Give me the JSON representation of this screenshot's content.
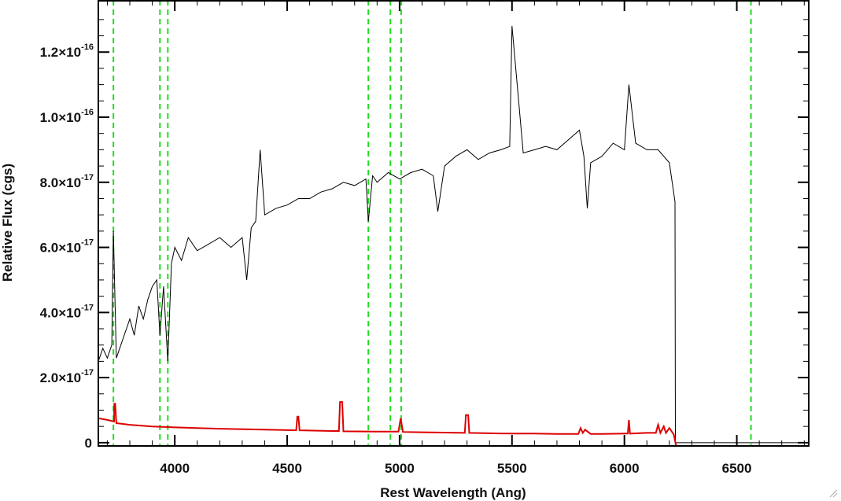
{
  "chart_data": {
    "type": "line",
    "title": "",
    "xlabel": "Rest Wavelength (Ang)",
    "ylabel": "Relative Flux (cgs)",
    "xlim": [
      3660,
      6820
    ],
    "ylim": [
      -1e-18,
      1.36e-16
    ],
    "x_ticks": [
      {
        "value": 4000,
        "label": "4000"
      },
      {
        "value": 4500,
        "label": "4500"
      },
      {
        "value": 5000,
        "label": "5000"
      },
      {
        "value": 5500,
        "label": "5500"
      },
      {
        "value": 6000,
        "label": "6000"
      },
      {
        "value": 6500,
        "label": "6500"
      }
    ],
    "y_ticks": [
      {
        "value": 0,
        "mantissa": "0",
        "exponent": ""
      },
      {
        "value": 2e-17,
        "mantissa": "2.0×10",
        "exponent": "-17"
      },
      {
        "value": 4e-17,
        "mantissa": "4.0×10",
        "exponent": "-17"
      },
      {
        "value": 6e-17,
        "mantissa": "6.0×10",
        "exponent": "-17"
      },
      {
        "value": 8e-17,
        "mantissa": "8.0×10",
        "exponent": "-17"
      },
      {
        "value": 1e-16,
        "mantissa": "1.0×10",
        "exponent": "-16"
      },
      {
        "value": 1.2e-16,
        "mantissa": "1.2×10",
        "exponent": "-16"
      }
    ],
    "vlines": {
      "color": "#22dd22",
      "style": "dashed",
      "x": [
        3727,
        3934,
        3969,
        4861,
        4959,
        5007,
        6563
      ]
    },
    "series": [
      {
        "color": "#000000",
        "x": [
          3660,
          3680,
          3700,
          3720,
          3727,
          3740,
          3760,
          3780,
          3800,
          3820,
          3840,
          3860,
          3880,
          3900,
          3920,
          3934,
          3950,
          3969,
          3985,
          4000,
          4030,
          4060,
          4100,
          4150,
          4200,
          4250,
          4300,
          4320,
          4340,
          4360,
          4380,
          4400,
          4450,
          4500,
          4550,
          4600,
          4650,
          4700,
          4750,
          4800,
          4850,
          4861,
          4880,
          4900,
          4950,
          5000,
          5050,
          5100,
          5150,
          5170,
          5200,
          5250,
          5300,
          5350,
          5400,
          5450,
          5490,
          5500,
          5550,
          5600,
          5650,
          5700,
          5750,
          5800,
          5820,
          5835,
          5850,
          5900,
          5950,
          6000,
          6020,
          6050,
          6100,
          6150,
          6200,
          6225,
          6227,
          6240,
          6820
        ],
        "values": [
          2.5e-17,
          2.9e-17,
          2.6e-17,
          3e-17,
          6.5e-17,
          2.6e-17,
          3e-17,
          3.4e-17,
          3.8e-17,
          3.3e-17,
          4.2e-17,
          3.8e-17,
          4.4e-17,
          4.8e-17,
          5e-17,
          3.3e-17,
          4.8e-17,
          2.5e-17,
          5.5e-17,
          6e-17,
          5.6e-17,
          6.3e-17,
          5.9e-17,
          6.1e-17,
          6.3e-17,
          6e-17,
          6.3e-17,
          5e-17,
          6.6e-17,
          6.8e-17,
          9e-17,
          7e-17,
          7.2e-17,
          7.3e-17,
          7.5e-17,
          7.5e-17,
          7.7e-17,
          7.8e-17,
          8e-17,
          7.9e-17,
          8.1e-17,
          6.8e-17,
          8.2e-17,
          8e-17,
          8.3e-17,
          8.1e-17,
          8.3e-17,
          8.4e-17,
          8.2e-17,
          7.1e-17,
          8.5e-17,
          8.8e-17,
          9e-17,
          8.7e-17,
          8.9e-17,
          9e-17,
          9.1e-17,
          1.28e-16,
          8.9e-17,
          9e-17,
          9.1e-17,
          9e-17,
          9.3e-17,
          9.6e-17,
          8.8e-17,
          7.2e-17,
          8.6e-17,
          8.8e-17,
          9.2e-17,
          9e-17,
          1.1e-16,
          9.2e-17,
          9e-17,
          9e-17,
          8.6e-17,
          7.4e-17,
          0.0,
          0.0,
          0.0
        ]
      },
      {
        "color": "#dd0000",
        "x": [
          3660,
          3700,
          3730,
          3731,
          3735,
          3740,
          3800,
          3900,
          4000,
          4200,
          4400,
          4540,
          4545,
          4550,
          4555,
          4700,
          4730,
          4735,
          4745,
          4750,
          4900,
          4995,
          5005,
          5015,
          5100,
          5290,
          5295,
          5305,
          5310,
          5400,
          5500,
          5600,
          5700,
          5795,
          5805,
          5815,
          5825,
          5850,
          5900,
          6000,
          6015,
          6020,
          6025,
          6100,
          6140,
          6150,
          6160,
          6175,
          6185,
          6200,
          6220,
          6230,
          6240,
          6820
        ],
        "values": [
          7.5e-18,
          7e-18,
          6.5e-18,
          1.2e-17,
          1.2e-17,
          6e-18,
          5.5e-18,
          5e-18,
          4.7e-18,
          4.3e-18,
          4e-18,
          3.8e-18,
          8e-18,
          8e-18,
          3.8e-18,
          3.6e-18,
          3.6e-18,
          1.25e-17,
          1.25e-17,
          3.5e-18,
          3.4e-18,
          3.4e-18,
          7.5e-18,
          3.3e-18,
          3.2e-18,
          3e-18,
          8.5e-18,
          8.5e-18,
          3e-18,
          2.9e-18,
          2.8e-18,
          2.8e-18,
          2.7e-18,
          2.7e-18,
          4.5e-18,
          3e-18,
          4e-18,
          2.7e-18,
          2.7e-18,
          2.8e-18,
          2.8e-18,
          7e-18,
          2.8e-18,
          3e-18,
          3e-18,
          5.5e-18,
          3e-18,
          5e-18,
          3e-18,
          4.5e-18,
          2.5e-18,
          -1e-18,
          -1e-18,
          -1e-18
        ]
      }
    ]
  }
}
